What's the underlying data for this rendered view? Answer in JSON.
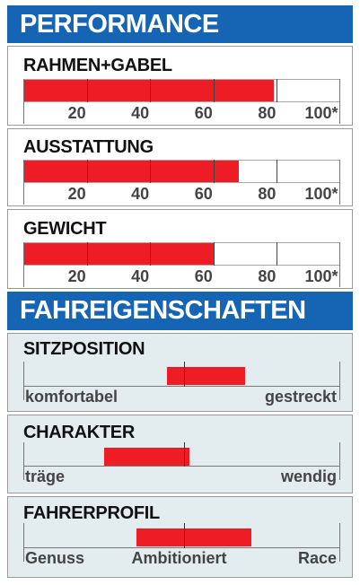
{
  "sections": {
    "performance": "PERFORMANCE",
    "fahreigenschaften": "FAHREIGENSCHAFTEN"
  },
  "colors": {
    "header_bg": "#1565b4",
    "bar": "#ee1c25",
    "feature_bg": "#e3ecef"
  },
  "chart_data": [
    {
      "type": "bar",
      "title": "RAHMEN+GABEL",
      "value": 79,
      "xlim": [
        0,
        100
      ],
      "ticks": [
        "20",
        "40",
        "60",
        "80",
        "100*"
      ]
    },
    {
      "type": "bar",
      "title": "AUSSTATTUNG",
      "value": 68,
      "xlim": [
        0,
        100
      ],
      "ticks": [
        "20",
        "40",
        "60",
        "80",
        "100*"
      ]
    },
    {
      "type": "bar",
      "title": "GEWICHT",
      "value": 60,
      "xlim": [
        0,
        100
      ],
      "ticks": [
        "20",
        "40",
        "60",
        "80",
        "100*"
      ]
    },
    {
      "type": "bar",
      "title": "SITZPOSITION",
      "range": [
        0.453,
        0.7
      ],
      "labels": [
        "komfortabel",
        "gestreckt"
      ]
    },
    {
      "type": "bar",
      "title": "CHARAKTER",
      "range": [
        0.255,
        0.525
      ],
      "labels": [
        "träge",
        "wendig"
      ]
    },
    {
      "type": "bar",
      "title": "FAHRERPROFIL",
      "range": [
        0.357,
        0.72
      ],
      "labels": [
        "Genuss",
        "Ambitioniert",
        "Race"
      ]
    }
  ]
}
